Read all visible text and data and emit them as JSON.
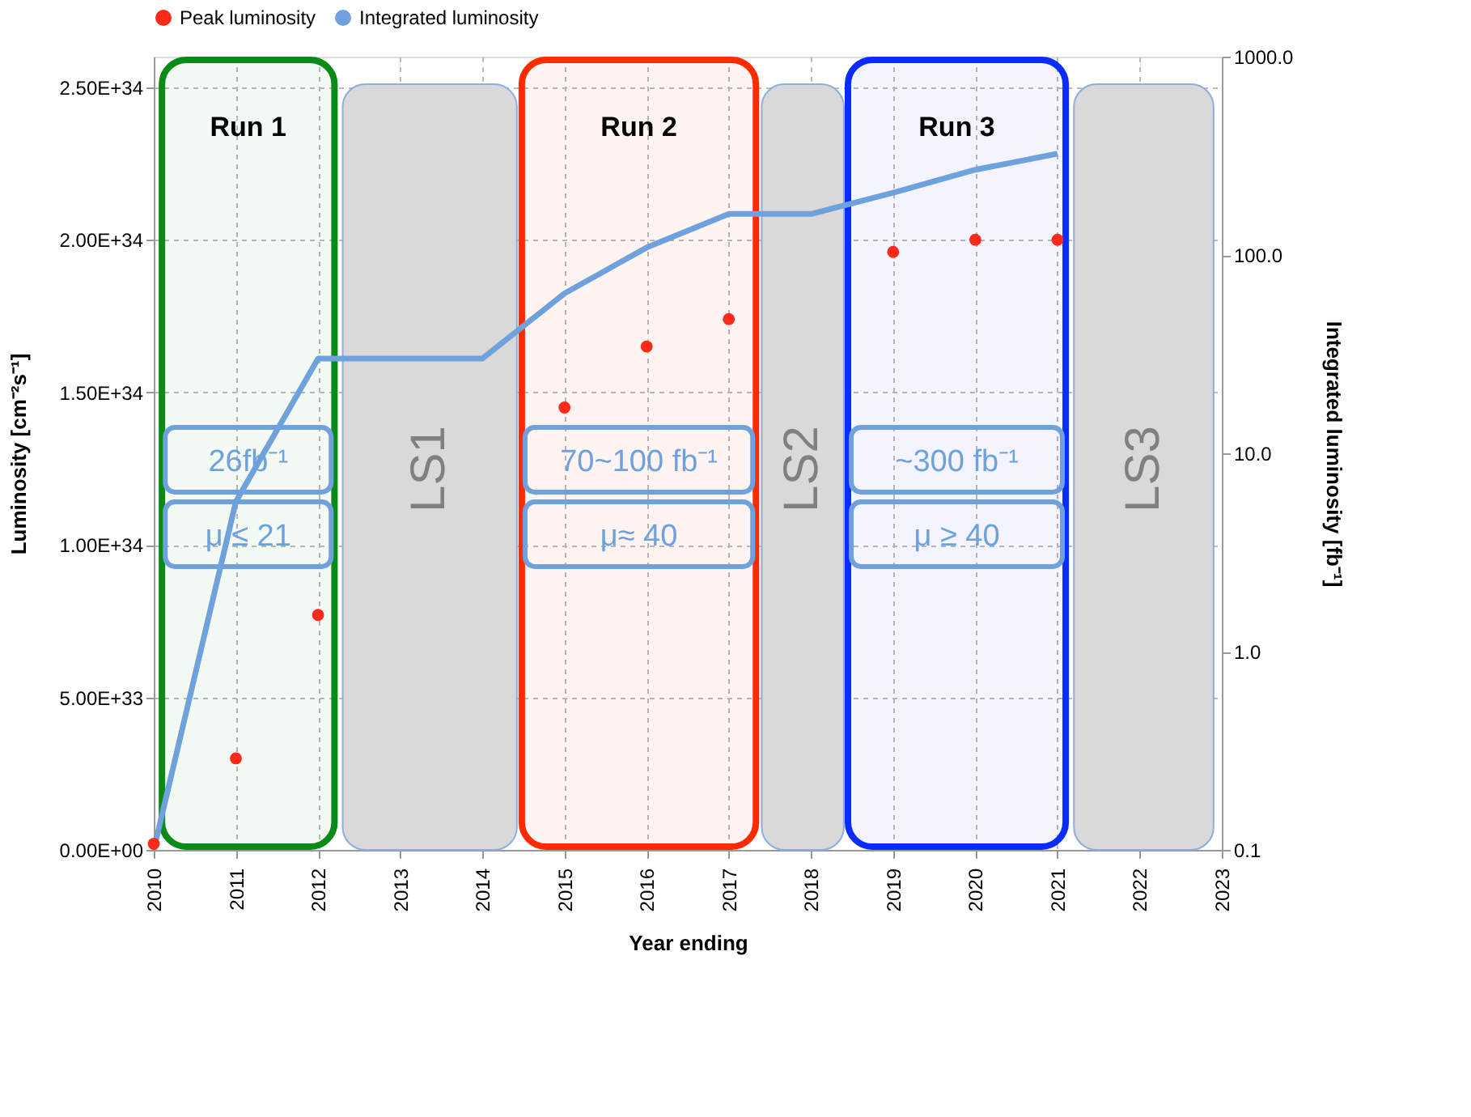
{
  "chart_data": {
    "type": "line",
    "xlabel": "Year ending",
    "ylabel": "Luminosity [cm⁻²s⁻¹]",
    "y2label": "Integrated luminosity [fb⁻¹]",
    "xlim": [
      2010,
      2023
    ],
    "xticks": [
      2010,
      2011,
      2012,
      2013,
      2014,
      2015,
      2016,
      2017,
      2018,
      2019,
      2020,
      2021,
      2022,
      2023
    ],
    "ylim": [
      0,
      2.6e+34
    ],
    "yticks": [
      {
        "value": 0,
        "label": "0.00E+00"
      },
      {
        "value": 5e+33,
        "label": "5.00E+33"
      },
      {
        "value": 1e+34,
        "label": "1.00E+34"
      },
      {
        "value": 1.5e+34,
        "label": "1.50E+34"
      },
      {
        "value": 2e+34,
        "label": "2.00E+34"
      },
      {
        "value": 2.5e+34,
        "label": "2.50E+34"
      }
    ],
    "log": "y2",
    "y2lim": [
      0.1,
      1000
    ],
    "y2ticks": [
      {
        "value": 0.1,
        "label": "0.1"
      },
      {
        "value": 1,
        "label": "1.0"
      },
      {
        "value": 10,
        "label": "10.0"
      },
      {
        "value": 100,
        "label": "100.0"
      },
      {
        "value": 1000,
        "label": "1000.0"
      }
    ],
    "grid": true,
    "legend": "top",
    "series": [
      {
        "name": "Peak luminosity",
        "type": "scatter",
        "marker": "circle",
        "color": "#ff2a1a",
        "x": [
          2010,
          2011,
          2012,
          2015,
          2016,
          2017,
          2019,
          2020,
          2021
        ],
        "values": [
          2e+32,
          3e+33,
          7.7e+33,
          1.45e+34,
          1.65e+34,
          1.74e+34,
          1.96e+34,
          2e+34,
          2e+34
        ]
      },
      {
        "name": "Integrated luminosity",
        "axis": "y2",
        "color": "#6fa1dc",
        "x": [
          2010,
          2011,
          2012,
          2013,
          2014,
          2015,
          2016,
          2017,
          2018,
          2019,
          2020,
          2021
        ],
        "values": [
          0.1,
          5.7,
          30,
          30,
          30,
          64,
          109,
          161,
          161,
          206,
          269,
          324
        ]
      }
    ],
    "bands": [
      {
        "axis": "x",
        "from": 2010.1,
        "to": 2012.2,
        "label": "Run 1",
        "color": "#0a8a16"
      },
      {
        "axis": "x",
        "from": 2012.3,
        "to": 2014.42,
        "label": "LS1",
        "color": "#d9d9d9"
      },
      {
        "axis": "x",
        "from": 2014.48,
        "to": 2017.33,
        "label": "Run 2",
        "color": "#ff2a00"
      },
      {
        "axis": "x",
        "from": 2017.4,
        "to": 2018.4,
        "label": "LS2",
        "color": "#d9d9d9"
      },
      {
        "axis": "x",
        "from": 2018.45,
        "to": 2021.1,
        "label": "Run 3",
        "color": "#0a2cff"
      },
      {
        "axis": "x",
        "from": 2021.2,
        "to": 2022.9,
        "label": "LS3",
        "color": "#d9d9d9"
      }
    ],
    "annotations": [
      "26fb⁻¹",
      "μ ≤ 21",
      "70~100 fb⁻¹",
      "μ≈ 40",
      "~300 fb⁻¹",
      "μ ≥ 40"
    ]
  }
}
